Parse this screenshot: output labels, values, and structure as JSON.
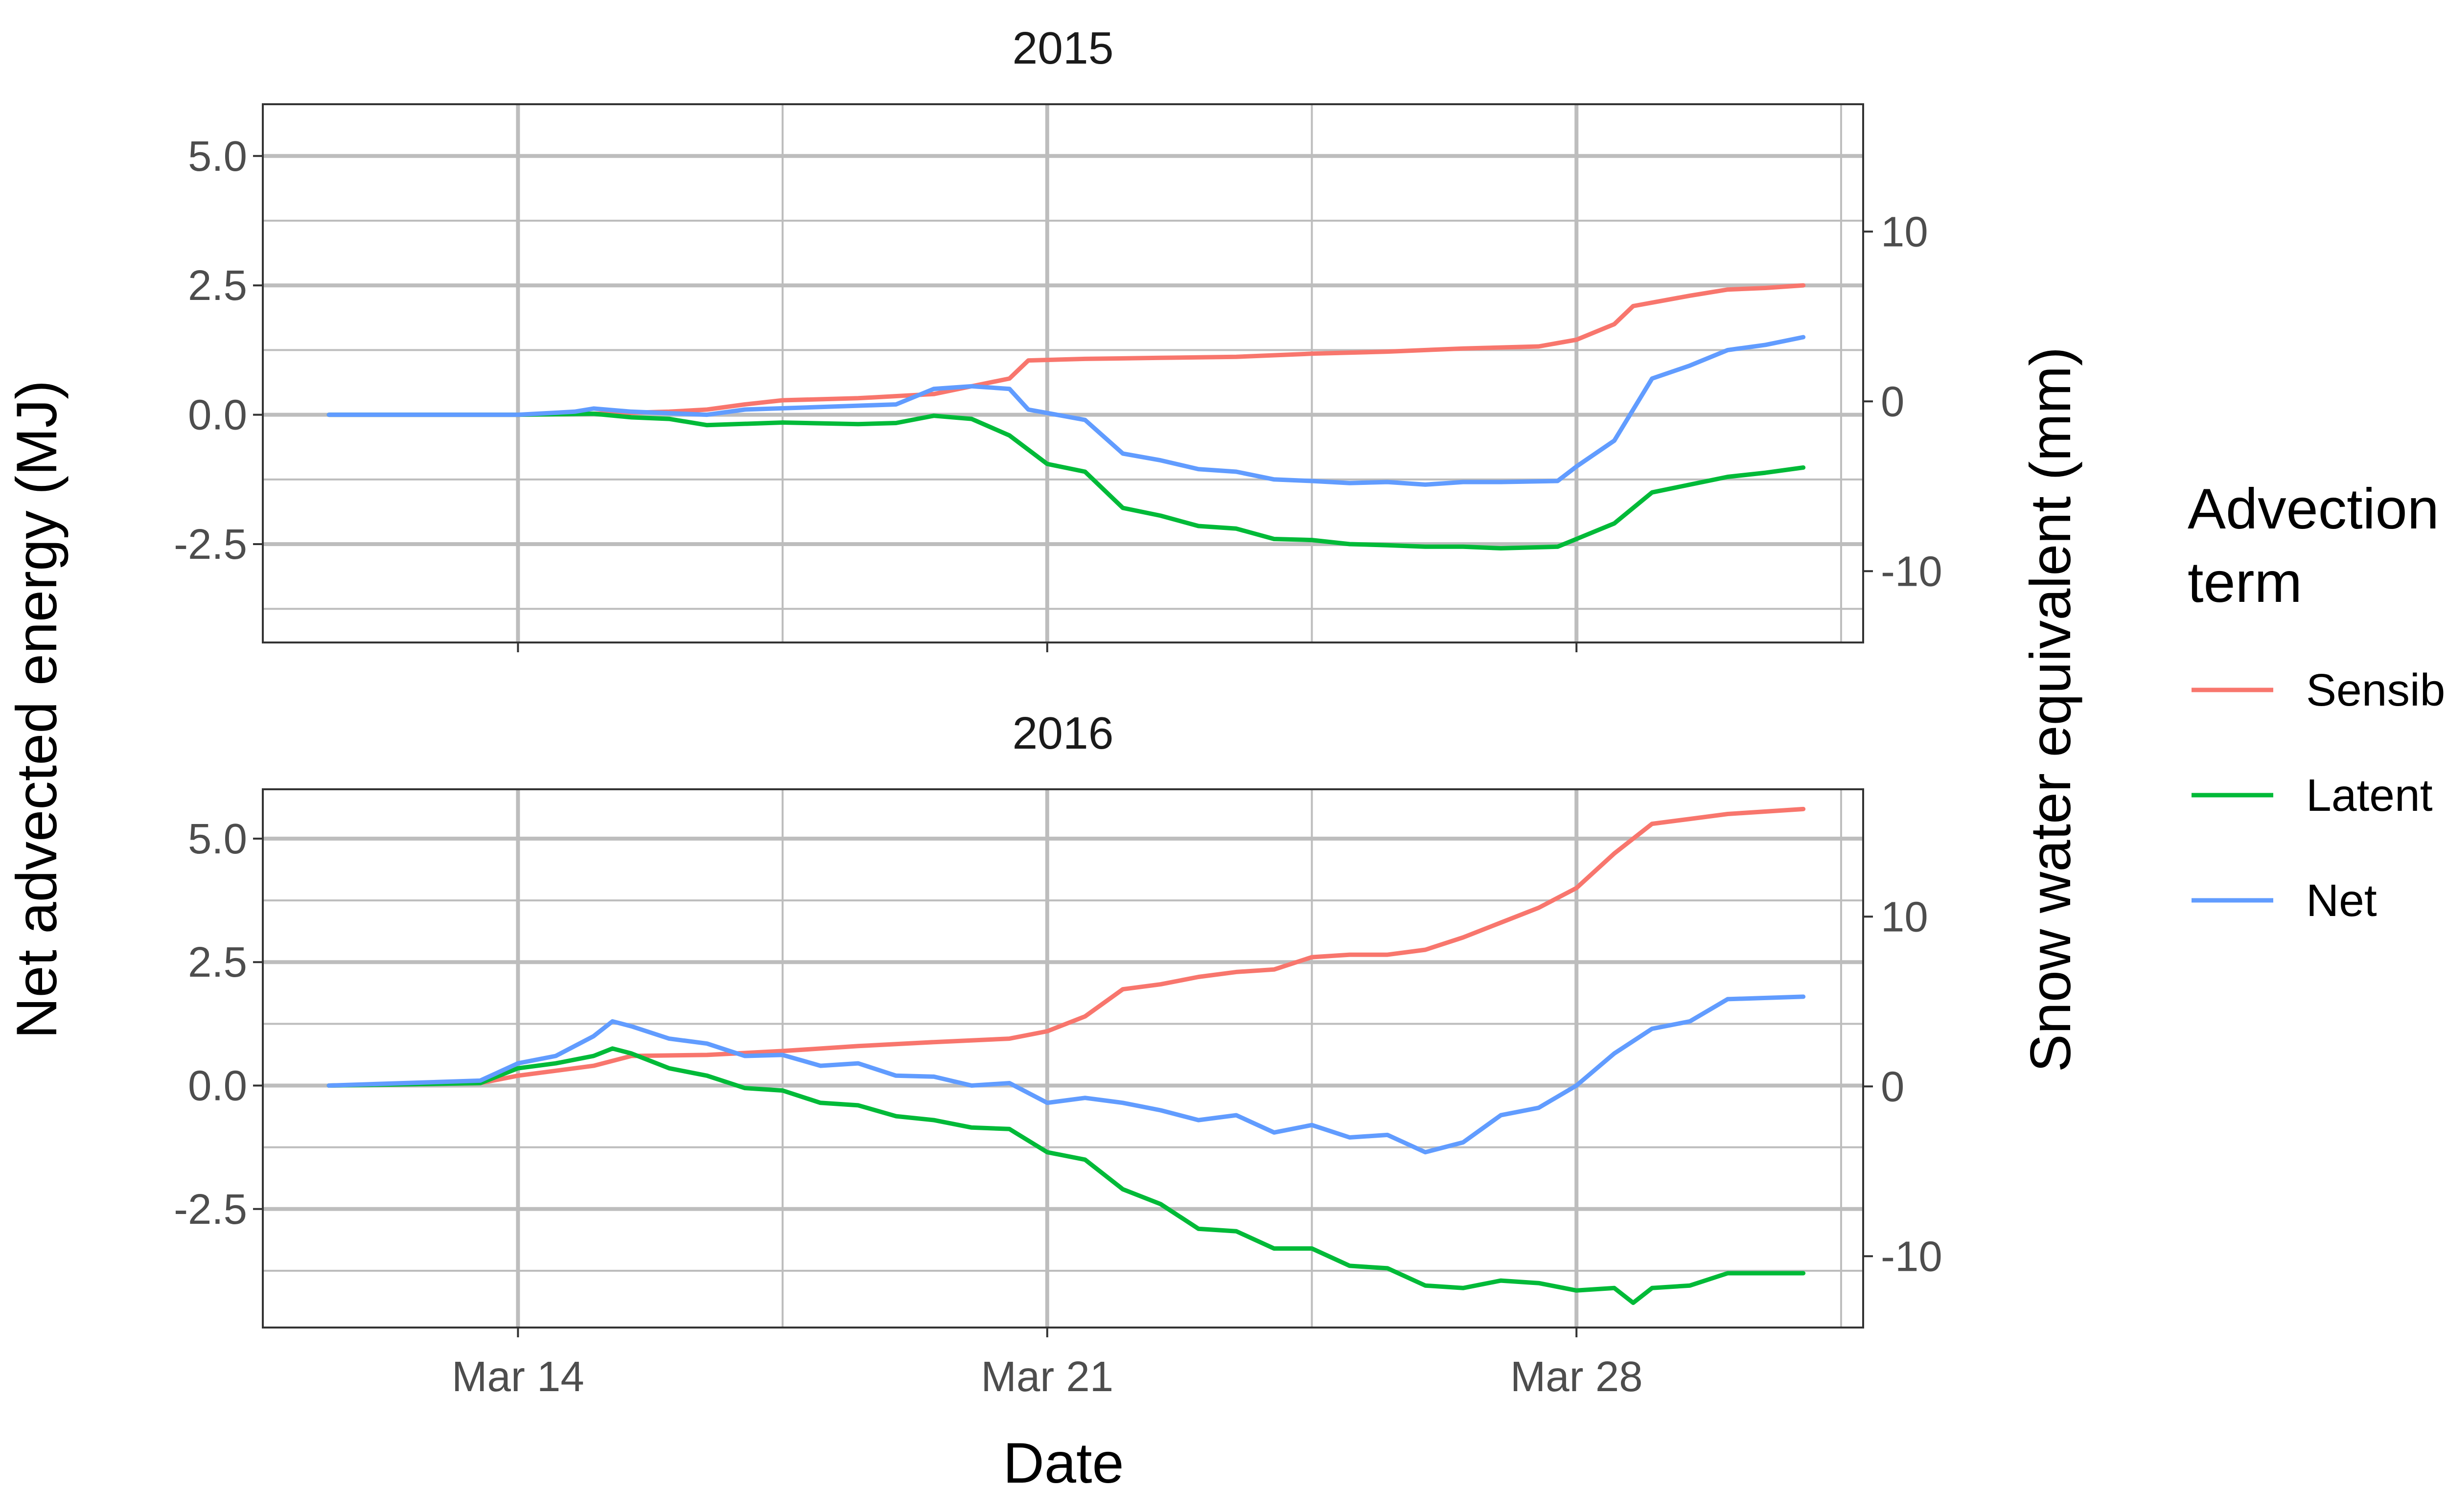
{
  "chart_data": [
    {
      "type": "line",
      "panel": "2015",
      "title": "2015",
      "xlabel": "Date",
      "ylabel": "Net advected energy (MJ)",
      "y2label": "Snow water equivalent (mm)",
      "xlim": [
        "2015-03-10T15:00",
        "2015-03-31T19:00"
      ],
      "ylim": [
        -4.4,
        6.0
      ],
      "y2lim": [
        -14.2,
        17.5
      ],
      "x_ticks": [
        "Mar 14",
        "Mar 21",
        "Mar 28"
      ],
      "x_tick_dates": [
        "2015-03-14",
        "2015-03-21",
        "2015-03-28"
      ],
      "y_ticks": [
        "-2.5",
        "0.0",
        "2.5",
        "5.0"
      ],
      "y_tick_values": [
        -2.5,
        0.0,
        2.5,
        5.0
      ],
      "y2_ticks": [
        "-10",
        "0",
        "10"
      ],
      "y2_tick_values": [
        -10,
        0,
        10
      ],
      "grid": true,
      "series": [
        {
          "name": "Sensible",
          "color": "#F8766D",
          "points": [
            [
              "2015-03-11T12:00",
              0.0
            ],
            [
              "2015-03-14T00:00",
              0.0
            ],
            [
              "2015-03-15T00:00",
              0.02
            ],
            [
              "2015-03-16T00:00",
              0.06
            ],
            [
              "2015-03-16T12:00",
              0.1
            ],
            [
              "2015-03-17T00:00",
              0.2
            ],
            [
              "2015-03-17T12:00",
              0.28
            ],
            [
              "2015-03-18T12:00",
              0.32
            ],
            [
              "2015-03-19T12:00",
              0.4
            ],
            [
              "2015-03-20T00:00",
              0.55
            ],
            [
              "2015-03-20T12:00",
              0.7
            ],
            [
              "2015-03-20T18:00",
              1.05
            ],
            [
              "2015-03-21T12:00",
              1.08
            ],
            [
              "2015-03-22T12:00",
              1.1
            ],
            [
              "2015-03-23T12:00",
              1.12
            ],
            [
              "2015-03-24T12:00",
              1.18
            ],
            [
              "2015-03-25T12:00",
              1.22
            ],
            [
              "2015-03-26T12:00",
              1.28
            ],
            [
              "2015-03-27T12:00",
              1.32
            ],
            [
              "2015-03-28T00:00",
              1.45
            ],
            [
              "2015-03-28T12:00",
              1.75
            ],
            [
              "2015-03-28T18:00",
              2.1
            ],
            [
              "2015-03-29T12:00",
              2.3
            ],
            [
              "2015-03-30T00:00",
              2.42
            ],
            [
              "2015-03-30T12:00",
              2.45
            ],
            [
              "2015-03-31T00:00",
              2.5
            ]
          ]
        },
        {
          "name": "Latent",
          "color": "#00BA38",
          "points": [
            [
              "2015-03-11T12:00",
              0.0
            ],
            [
              "2015-03-14T00:00",
              0.0
            ],
            [
              "2015-03-15T00:00",
              0.02
            ],
            [
              "2015-03-15T12:00",
              -0.05
            ],
            [
              "2015-03-16T00:00",
              -0.08
            ],
            [
              "2015-03-16T12:00",
              -0.2
            ],
            [
              "2015-03-17T12:00",
              -0.15
            ],
            [
              "2015-03-18T12:00",
              -0.18
            ],
            [
              "2015-03-19T00:00",
              -0.16
            ],
            [
              "2015-03-19T12:00",
              -0.02
            ],
            [
              "2015-03-20T00:00",
              -0.08
            ],
            [
              "2015-03-20T12:00",
              -0.4
            ],
            [
              "2015-03-21T00:00",
              -0.95
            ],
            [
              "2015-03-21T12:00",
              -1.1
            ],
            [
              "2015-03-22T00:00",
              -1.8
            ],
            [
              "2015-03-22T12:00",
              -1.95
            ],
            [
              "2015-03-23T00:00",
              -2.15
            ],
            [
              "2015-03-23T12:00",
              -2.2
            ],
            [
              "2015-03-24T00:00",
              -2.4
            ],
            [
              "2015-03-24T12:00",
              -2.42
            ],
            [
              "2015-03-25T00:00",
              -2.5
            ],
            [
              "2015-03-25T12:00",
              -2.52
            ],
            [
              "2015-03-26T00:00",
              -2.55
            ],
            [
              "2015-03-26T12:00",
              -2.55
            ],
            [
              "2015-03-27T00:00",
              -2.58
            ],
            [
              "2015-03-27T18:00",
              -2.55
            ],
            [
              "2015-03-28T00:00",
              -2.4
            ],
            [
              "2015-03-28T12:00",
              -2.1
            ],
            [
              "2015-03-29T00:00",
              -1.5
            ],
            [
              "2015-03-29T12:00",
              -1.35
            ],
            [
              "2015-03-30T00:00",
              -1.2
            ],
            [
              "2015-03-30T12:00",
              -1.12
            ],
            [
              "2015-03-31T00:00",
              -1.02
            ]
          ]
        },
        {
          "name": "Net",
          "color": "#619CFF",
          "points": [
            [
              "2015-03-11T12:00",
              0.0
            ],
            [
              "2015-03-14T00:00",
              0.0
            ],
            [
              "2015-03-14T18:00",
              0.06
            ],
            [
              "2015-03-15T00:00",
              0.12
            ],
            [
              "2015-03-15T12:00",
              0.06
            ],
            [
              "2015-03-16T12:00",
              0.0
            ],
            [
              "2015-03-17T00:00",
              0.1
            ],
            [
              "2015-03-18T00:00",
              0.15
            ],
            [
              "2015-03-19T00:00",
              0.2
            ],
            [
              "2015-03-19T12:00",
              0.5
            ],
            [
              "2015-03-20T00:00",
              0.55
            ],
            [
              "2015-03-20T12:00",
              0.5
            ],
            [
              "2015-03-20T18:00",
              0.1
            ],
            [
              "2015-03-21T12:00",
              -0.1
            ],
            [
              "2015-03-22T00:00",
              -0.75
            ],
            [
              "2015-03-22T12:00",
              -0.88
            ],
            [
              "2015-03-23T00:00",
              -1.05
            ],
            [
              "2015-03-23T12:00",
              -1.1
            ],
            [
              "2015-03-24T00:00",
              -1.25
            ],
            [
              "2015-03-24T12:00",
              -1.28
            ],
            [
              "2015-03-25T00:00",
              -1.32
            ],
            [
              "2015-03-25T12:00",
              -1.3
            ],
            [
              "2015-03-26T00:00",
              -1.35
            ],
            [
              "2015-03-26T12:00",
              -1.3
            ],
            [
              "2015-03-27T00:00",
              -1.3
            ],
            [
              "2015-03-27T18:00",
              -1.28
            ],
            [
              "2015-03-28T00:00",
              -1.0
            ],
            [
              "2015-03-28T12:00",
              -0.5
            ],
            [
              "2015-03-29T00:00",
              0.7
            ],
            [
              "2015-03-29T12:00",
              0.95
            ],
            [
              "2015-03-30T00:00",
              1.25
            ],
            [
              "2015-03-30T12:00",
              1.35
            ],
            [
              "2015-03-31T00:00",
              1.5
            ]
          ]
        }
      ]
    },
    {
      "type": "line",
      "panel": "2016",
      "title": "2016",
      "xlabel": "Date",
      "ylabel": "Net advected energy (MJ)",
      "y2label": "Snow water equivalent (mm)",
      "xlim": [
        "2016-03-10T15:00",
        "2016-03-31T19:00"
      ],
      "ylim": [
        -4.9,
        6.0
      ],
      "y2lim": [
        -14.2,
        17.5
      ],
      "x_ticks": [
        "Mar 14",
        "Mar 21",
        "Mar 28"
      ],
      "x_tick_dates": [
        "2016-03-14",
        "2016-03-21",
        "2016-03-28"
      ],
      "y_ticks": [
        "-2.5",
        "0.0",
        "2.5",
        "5.0"
      ],
      "y_tick_values": [
        -2.5,
        0.0,
        2.5,
        5.0
      ],
      "y2_ticks": [
        "-10",
        "0",
        "10"
      ],
      "y2_tick_values": [
        -10,
        0,
        10
      ],
      "grid": true,
      "series": [
        {
          "name": "Sensible",
          "color": "#F8766D",
          "points": [
            [
              "2016-03-11T12:00",
              0.0
            ],
            [
              "2016-03-13T12:00",
              0.05
            ],
            [
              "2016-03-14T00:00",
              0.2
            ],
            [
              "2016-03-15T00:00",
              0.4
            ],
            [
              "2016-03-15T12:00",
              0.6
            ],
            [
              "2016-03-16T12:00",
              0.62
            ],
            [
              "2016-03-17T12:00",
              0.7
            ],
            [
              "2016-03-18T12:00",
              0.8
            ],
            [
              "2016-03-19T12:00",
              0.88
            ],
            [
              "2016-03-20T12:00",
              0.95
            ],
            [
              "2016-03-21T00:00",
              1.1
            ],
            [
              "2016-03-21T12:00",
              1.4
            ],
            [
              "2016-03-22T00:00",
              1.95
            ],
            [
              "2016-03-22T12:00",
              2.05
            ],
            [
              "2016-03-23T00:00",
              2.2
            ],
            [
              "2016-03-23T12:00",
              2.3
            ],
            [
              "2016-03-24T00:00",
              2.35
            ],
            [
              "2016-03-24T12:00",
              2.6
            ],
            [
              "2016-03-25T00:00",
              2.65
            ],
            [
              "2016-03-25T12:00",
              2.65
            ],
            [
              "2016-03-26T00:00",
              2.75
            ],
            [
              "2016-03-26T12:00",
              3.0
            ],
            [
              "2016-03-27T00:00",
              3.3
            ],
            [
              "2016-03-27T12:00",
              3.6
            ],
            [
              "2016-03-28T00:00",
              4.0
            ],
            [
              "2016-03-28T12:00",
              4.7
            ],
            [
              "2016-03-29T00:00",
              5.3
            ],
            [
              "2016-03-29T12:00",
              5.4
            ],
            [
              "2016-03-30T00:00",
              5.5
            ],
            [
              "2016-03-31T00:00",
              5.6
            ]
          ]
        },
        {
          "name": "Latent",
          "color": "#00BA38",
          "points": [
            [
              "2016-03-11T12:00",
              0.0
            ],
            [
              "2016-03-13T12:00",
              0.05
            ],
            [
              "2016-03-14T00:00",
              0.35
            ],
            [
              "2016-03-14T12:00",
              0.45
            ],
            [
              "2016-03-15T00:00",
              0.6
            ],
            [
              "2016-03-15T06:00",
              0.75
            ],
            [
              "2016-03-15T12:00",
              0.65
            ],
            [
              "2016-03-16T00:00",
              0.35
            ],
            [
              "2016-03-16T12:00",
              0.2
            ],
            [
              "2016-03-17T00:00",
              -0.05
            ],
            [
              "2016-03-17T12:00",
              -0.1
            ],
            [
              "2016-03-18T00:00",
              -0.35
            ],
            [
              "2016-03-18T12:00",
              -0.4
            ],
            [
              "2016-03-19T00:00",
              -0.62
            ],
            [
              "2016-03-19T12:00",
              -0.7
            ],
            [
              "2016-03-20T00:00",
              -0.85
            ],
            [
              "2016-03-20T12:00",
              -0.88
            ],
            [
              "2016-03-21T00:00",
              -1.35
            ],
            [
              "2016-03-21T12:00",
              -1.5
            ],
            [
              "2016-03-22T00:00",
              -2.1
            ],
            [
              "2016-03-22T12:00",
              -2.4
            ],
            [
              "2016-03-23T00:00",
              -2.9
            ],
            [
              "2016-03-23T12:00",
              -2.95
            ],
            [
              "2016-03-24T00:00",
              -3.3
            ],
            [
              "2016-03-24T12:00",
              -3.3
            ],
            [
              "2016-03-25T00:00",
              -3.65
            ],
            [
              "2016-03-25T12:00",
              -3.7
            ],
            [
              "2016-03-26T00:00",
              -4.05
            ],
            [
              "2016-03-26T12:00",
              -4.1
            ],
            [
              "2016-03-27T00:00",
              -3.95
            ],
            [
              "2016-03-27T12:00",
              -4.0
            ],
            [
              "2016-03-28T00:00",
              -4.15
            ],
            [
              "2016-03-28T12:00",
              -4.1
            ],
            [
              "2016-03-28T18:00",
              -4.4
            ],
            [
              "2016-03-29T00:00",
              -4.1
            ],
            [
              "2016-03-29T12:00",
              -4.05
            ],
            [
              "2016-03-30T00:00",
              -3.8
            ],
            [
              "2016-03-31T00:00",
              -3.8
            ]
          ]
        },
        {
          "name": "Net",
          "color": "#619CFF",
          "points": [
            [
              "2016-03-11T12:00",
              0.0
            ],
            [
              "2016-03-13T12:00",
              0.1
            ],
            [
              "2016-03-14T00:00",
              0.45
            ],
            [
              "2016-03-14T12:00",
              0.6
            ],
            [
              "2016-03-15T00:00",
              1.0
            ],
            [
              "2016-03-15T06:00",
              1.3
            ],
            [
              "2016-03-15T12:00",
              1.2
            ],
            [
              "2016-03-16T00:00",
              0.95
            ],
            [
              "2016-03-16T12:00",
              0.85
            ],
            [
              "2016-03-17T00:00",
              0.6
            ],
            [
              "2016-03-17T12:00",
              0.62
            ],
            [
              "2016-03-18T00:00",
              0.4
            ],
            [
              "2016-03-18T12:00",
              0.45
            ],
            [
              "2016-03-19T00:00",
              0.2
            ],
            [
              "2016-03-19T12:00",
              0.18
            ],
            [
              "2016-03-20T00:00",
              0.0
            ],
            [
              "2016-03-20T12:00",
              0.05
            ],
            [
              "2016-03-21T00:00",
              -0.35
            ],
            [
              "2016-03-21T12:00",
              -0.25
            ],
            [
              "2016-03-22T00:00",
              -0.35
            ],
            [
              "2016-03-22T12:00",
              -0.5
            ],
            [
              "2016-03-23T00:00",
              -0.7
            ],
            [
              "2016-03-23T12:00",
              -0.6
            ],
            [
              "2016-03-24T00:00",
              -0.95
            ],
            [
              "2016-03-24T12:00",
              -0.8
            ],
            [
              "2016-03-25T00:00",
              -1.05
            ],
            [
              "2016-03-25T12:00",
              -1.0
            ],
            [
              "2016-03-26T00:00",
              -1.35
            ],
            [
              "2016-03-26T12:00",
              -1.15
            ],
            [
              "2016-03-27T00:00",
              -0.6
            ],
            [
              "2016-03-27T12:00",
              -0.45
            ],
            [
              "2016-03-28T00:00",
              0.0
            ],
            [
              "2016-03-28T12:00",
              0.65
            ],
            [
              "2016-03-29T00:00",
              1.15
            ],
            [
              "2016-03-29T12:00",
              1.3
            ],
            [
              "2016-03-30T00:00",
              1.75
            ],
            [
              "2016-03-31T00:00",
              1.8
            ]
          ]
        }
      ]
    }
  ],
  "legend": {
    "title_line1": "Advection",
    "title_line2": "term",
    "items": [
      {
        "label": "Sensible",
        "color": "#F8766D"
      },
      {
        "label": "Latent",
        "color": "#00BA38"
      },
      {
        "label": "Net",
        "color": "#619CFF"
      }
    ]
  }
}
